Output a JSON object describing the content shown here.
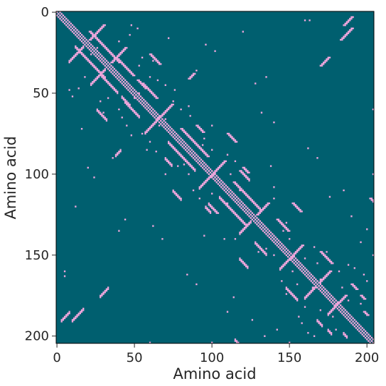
{
  "chart_data": {
    "type": "heatmap",
    "title": "",
    "xlabel": "Amino acid",
    "ylabel": "Amino acid",
    "n": 205,
    "xlim": [
      0,
      204
    ],
    "ylim": [
      0,
      204
    ],
    "y_inverted": true,
    "x_ticks": [
      0,
      50,
      100,
      150,
      200
    ],
    "y_ticks": [
      0,
      50,
      100,
      150,
      200
    ],
    "colors": {
      "background": "#005f6f",
      "contact": "#f0a6dc",
      "frame": "#000000"
    },
    "symmetric": true,
    "description_of_values": "binary contact map; listed segments are contacts (i<j) mirrored across the diagonal",
    "diagonal_bands": {
      "offsets": [
        0,
        2
      ],
      "exclude_offset": 1
    },
    "contact_segments": [
      {
        "i": 12,
        "j": 21,
        "len": 20,
        "dir": "parallel"
      },
      {
        "i": 8,
        "j": 30,
        "len": 10,
        "dir": "antiparallel"
      },
      {
        "i": 28,
        "j": 38,
        "len": 12,
        "dir": "parallel"
      },
      {
        "i": 22,
        "j": 44,
        "len": 10,
        "dir": "antiparallel"
      },
      {
        "i": 44,
        "j": 55,
        "len": 10,
        "dir": "parallel"
      },
      {
        "i": 42,
        "j": 52,
        "len": 6,
        "dir": "parallel"
      },
      {
        "i": 57,
        "j": 74,
        "len": 10,
        "dir": "antiparallel"
      },
      {
        "i": 72,
        "j": 80,
        "len": 18,
        "dir": "parallel"
      },
      {
        "i": 70,
        "j": 90,
        "len": 5,
        "dir": "parallel"
      },
      {
        "i": 92,
        "j": 108,
        "len": 10,
        "dir": "antiparallel"
      },
      {
        "i": 105,
        "j": 114,
        "len": 18,
        "dir": "parallel"
      },
      {
        "i": 98,
        "j": 118,
        "len": 6,
        "dir": "parallel"
      },
      {
        "i": 118,
        "j": 136,
        "len": 8,
        "dir": "antiparallel"
      },
      {
        "i": 128,
        "j": 142,
        "len": 8,
        "dir": "parallel"
      },
      {
        "i": 144,
        "j": 158,
        "len": 8,
        "dir": "antiparallel"
      },
      {
        "i": 148,
        "j": 170,
        "len": 8,
        "dir": "parallel"
      },
      {
        "i": 160,
        "j": 176,
        "len": 8,
        "dir": "antiparallel"
      },
      {
        "i": 175,
        "j": 186,
        "len": 8,
        "dir": "antiparallel"
      },
      {
        "i": 168,
        "j": 190,
        "len": 4,
        "dir": "parallel"
      },
      {
        "i": 26,
        "j": 60,
        "len": 7,
        "dir": "parallel"
      },
      {
        "i": 38,
        "j": 88,
        "len": 4,
        "dir": "antiparallel"
      },
      {
        "i": 75,
        "j": 110,
        "len": 6,
        "dir": "parallel"
      },
      {
        "i": 96,
        "j": 120,
        "len": 4,
        "dir": "parallel"
      },
      {
        "i": 118,
        "j": 152,
        "len": 6,
        "dir": "parallel"
      },
      {
        "i": 28,
        "j": 175,
        "len": 6,
        "dir": "antiparallel"
      },
      {
        "i": 10,
        "j": 190,
        "len": 8,
        "dir": "antiparallel"
      },
      {
        "i": 3,
        "j": 190,
        "len": 6,
        "dir": "antiparallel"
      },
      {
        "i": 60,
        "j": 204,
        "len": 6,
        "dir": "parallel"
      },
      {
        "i": 100,
        "j": 204,
        "len": 4,
        "dir": "parallel"
      },
      {
        "i": 115,
        "j": 202,
        "len": 3,
        "dir": "parallel"
      },
      {
        "i": 150,
        "j": 204,
        "len": 6,
        "dir": "parallel"
      },
      {
        "i": 175,
        "j": 196,
        "len": 3,
        "dir": "parallel"
      },
      {
        "i": 185,
        "j": 198,
        "len": 3,
        "dir": "parallel"
      }
    ],
    "scattered_contacts": [
      [
        5,
        160
      ],
      [
        5,
        163
      ],
      [
        10,
        52
      ],
      [
        14,
        47
      ],
      [
        18,
        40
      ],
      [
        22,
        26
      ],
      [
        28,
        55
      ],
      [
        30,
        62
      ],
      [
        33,
        53
      ],
      [
        36,
        90
      ],
      [
        40,
        26
      ],
      [
        40,
        60
      ],
      [
        42,
        65
      ],
      [
        45,
        70
      ],
      [
        46,
        58
      ],
      [
        48,
        76
      ],
      [
        50,
        53
      ],
      [
        55,
        75
      ],
      [
        58,
        85
      ],
      [
        60,
        80
      ],
      [
        62,
        64
      ],
      [
        64,
        86
      ],
      [
        66,
        70
      ],
      [
        70,
        100
      ],
      [
        78,
        95
      ],
      [
        80,
        88
      ],
      [
        82,
        94
      ],
      [
        85,
        100
      ],
      [
        88,
        110
      ],
      [
        92,
        115
      ],
      [
        95,
        138
      ],
      [
        100,
        112
      ],
      [
        104,
        124
      ],
      [
        108,
        140
      ],
      [
        110,
        118
      ],
      [
        115,
        140
      ],
      [
        120,
        134
      ],
      [
        125,
        115
      ],
      [
        130,
        148
      ],
      [
        135,
        146
      ],
      [
        140,
        150
      ],
      [
        145,
        166
      ],
      [
        148,
        174
      ],
      [
        152,
        160
      ],
      [
        155,
        168
      ],
      [
        160,
        182
      ],
      [
        165,
        170
      ],
      [
        170,
        184
      ],
      [
        178,
        188
      ],
      [
        180,
        196
      ],
      [
        8,
        48
      ],
      [
        12,
        120
      ],
      [
        16,
        72
      ],
      [
        20,
        96
      ],
      [
        24,
        102
      ],
      [
        40,
        135
      ],
      [
        44,
        128
      ],
      [
        62,
        132
      ],
      [
        68,
        140
      ],
      [
        84,
        162
      ],
      [
        90,
        168
      ],
      [
        110,
        185
      ],
      [
        114,
        176
      ],
      [
        126,
        190
      ],
      [
        134,
        200
      ],
      [
        142,
        196
      ],
      [
        156,
        188
      ],
      [
        158,
        192
      ],
      [
        162,
        198
      ],
      [
        166,
        200
      ]
    ]
  }
}
